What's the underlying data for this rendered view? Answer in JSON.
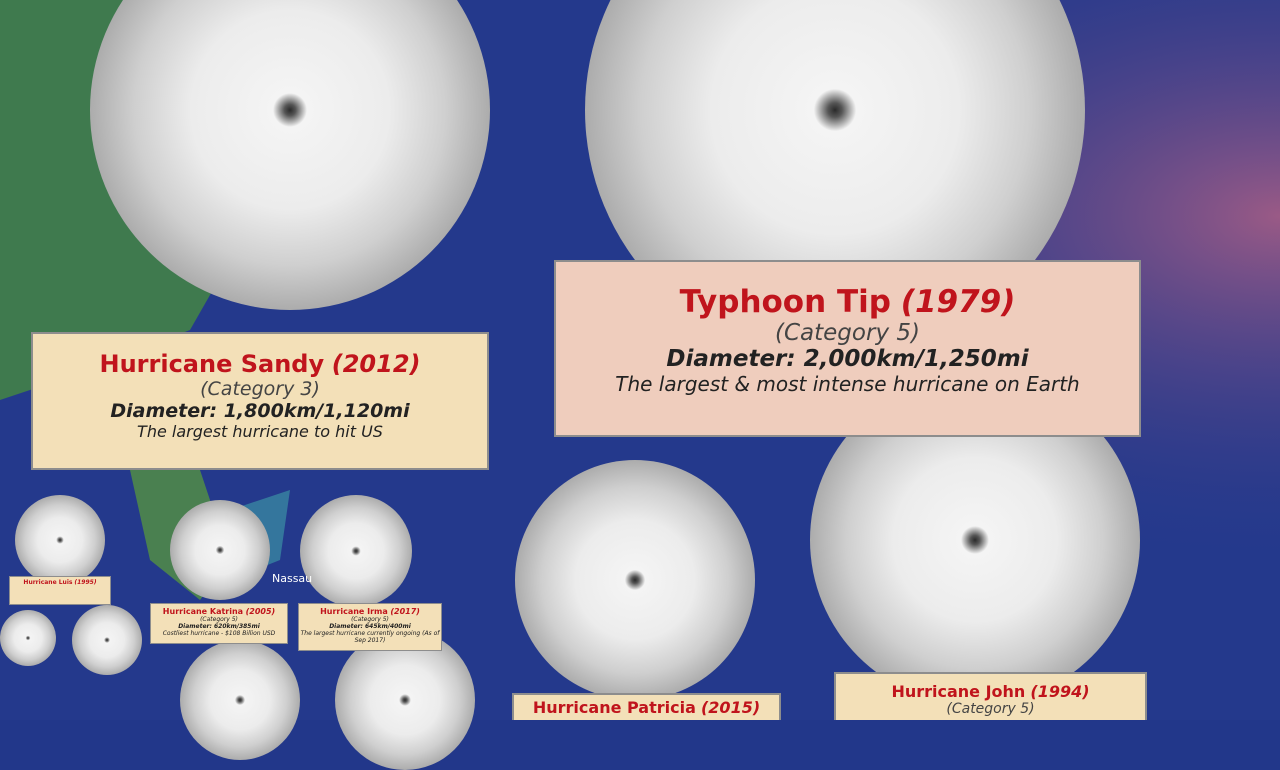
{
  "cards": [
    {
      "name": "Hurricane Sandy",
      "year": "(2012)",
      "category": "(Category 3)",
      "diameter": "Diameter: 1,800km/1,120mi",
      "note": "The largest hurricane to hit US"
    },
    {
      "name": "Typhoon Tip",
      "year": "(1979)",
      "category": "(Category 5)",
      "diameter": "Diameter: 2,000km/1,250mi",
      "note": "The largest & most intense hurricane on Earth"
    },
    {
      "name": "Hurricane Katrina",
      "year": "(2005)",
      "category": "(Category 5)",
      "diameter": "Diameter: 620km/385mi",
      "note": "Costliest hurricane - $108 Billion USD"
    },
    {
      "name": "Hurricane Irma",
      "year": "(2017)",
      "category": "(Category 5)",
      "diameter": "Diameter: 645km/400mi",
      "note": "The largest hurricane currently ongoing (As of Sep 2017)"
    },
    {
      "name": "Hurricane Luis",
      "year": "(1995)"
    },
    {
      "name": "Hurricane Patricia",
      "year": "(2015)"
    },
    {
      "name": "Hurricane John",
      "year": "(1994)",
      "category": "(Category 5)"
    }
  ],
  "map_labels": [
    "Nassau"
  ]
}
